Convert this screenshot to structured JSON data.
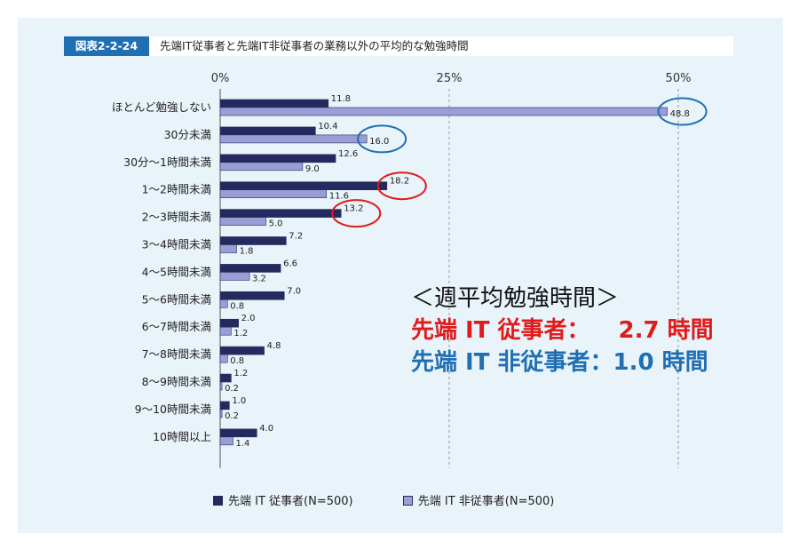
{
  "figure_number": "図表2-2-24",
  "figure_title": "先端IT従事者と先端IT非従事者の業務以外の平均的な勉強時間",
  "colors": {
    "it": "#232a5e",
    "non_it": "#9a9ed6",
    "highlight_red": "#e01b1b",
    "highlight_blue": "#1f6fb2",
    "panel_bg": "#e9f3fa",
    "grid": "#999999"
  },
  "chart_data": {
    "type": "bar",
    "orientation": "horizontal",
    "categories": [
      "ほとんど勉強しない",
      "30分未満",
      "30分～1時間未満",
      "1～2時間未満",
      "2～3時間未満",
      "3～4時間未満",
      "4～5時間未満",
      "5～6時間未満",
      "6～7時間未満",
      "7～8時間未満",
      "8～9時間未満",
      "9～10時間未満",
      "10時間以上"
    ],
    "series": [
      {
        "name": "先端 IT 従事者(N=500)",
        "color": "#232a5e",
        "values": [
          11.8,
          10.4,
          12.6,
          18.2,
          13.2,
          7.2,
          6.6,
          7.0,
          2.0,
          4.8,
          1.2,
          1.0,
          4.0
        ]
      },
      {
        "name": "先端 IT 非従事者(N=500)",
        "color": "#9a9ed6",
        "values": [
          48.8,
          16.0,
          9.0,
          11.6,
          5.0,
          1.8,
          3.2,
          0.8,
          1.2,
          0.8,
          0.2,
          0.2,
          1.4
        ]
      }
    ],
    "value_labels": [
      [
        "11.8",
        "10.4",
        "12.6",
        "18.2",
        "13.2",
        "7.2",
        "6.6",
        "7.0",
        "2.0",
        "4.8",
        "1.2",
        "1.0",
        "4.0"
      ],
      [
        "48.8",
        "16.0",
        "9.0",
        "11.6",
        "5.0",
        "1.8",
        "3.2",
        "0.8",
        "1.2",
        "0.8",
        "0.2",
        "0.2",
        "1.4"
      ]
    ],
    "xlim": [
      0,
      50
    ],
    "xticks": [
      0,
      25,
      50
    ],
    "xtick_labels": [
      "0%",
      "25%",
      "50%"
    ],
    "grid": "vertical dashed at 25% and 50%",
    "legend_position": "bottom",
    "highlights": [
      {
        "series": 1,
        "category": 0,
        "color": "blue"
      },
      {
        "series": 1,
        "category": 1,
        "color": "blue"
      },
      {
        "series": 0,
        "category": 3,
        "color": "red"
      },
      {
        "series": 0,
        "category": 4,
        "color": "red"
      }
    ]
  },
  "callout": {
    "title": "＜週平均勉強時間＞",
    "it_label": "先端 IT 従事者：",
    "it_value": "2.7 時間",
    "nonit_label": "先端 IT 非従事者：",
    "nonit_value": "1.0 時間"
  },
  "legend": {
    "it": "先端 IT 従事者(N=500)",
    "non_it": "先端 IT 非従事者(N=500)"
  }
}
